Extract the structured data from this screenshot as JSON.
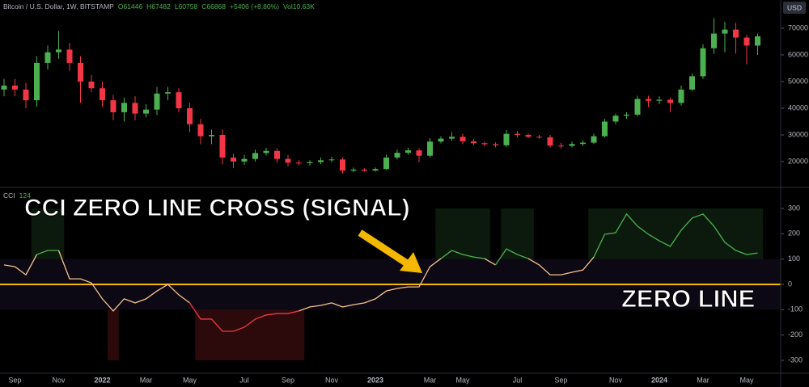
{
  "chart_data": [
    {
      "type": "candlestick",
      "title": "Bitcoin / U.S. Dollar, 1W, BITSTAMP",
      "stats": [
        "O61446",
        "H67482",
        "L60758",
        "C66868",
        "+5406 (+8.80%)",
        "Vol10.63K"
      ],
      "currency": "USD",
      "categories": [
        null,
        "Sep",
        null,
        null,
        null,
        "Nov",
        null,
        null,
        null,
        "2022",
        null,
        null,
        null,
        "Mar",
        null,
        null,
        null,
        "May",
        null,
        null,
        null,
        null,
        "Jul",
        null,
        null,
        null,
        "Sep",
        null,
        null,
        null,
        "Nov",
        null,
        null,
        null,
        "2023",
        null,
        null,
        null,
        null,
        "Mar",
        null,
        null,
        "May",
        null,
        null,
        null,
        null,
        "Jul",
        null,
        null,
        null,
        "Sep",
        null,
        null,
        null,
        null,
        "Nov",
        null,
        null,
        null,
        "2024",
        null,
        null,
        null,
        "Mar",
        null,
        null,
        null,
        "May",
        null
      ],
      "open": [
        47000,
        48500,
        47000,
        43000,
        57000,
        61000,
        62000,
        57000,
        50000,
        47500,
        43000,
        38500,
        42000,
        38000,
        39500,
        45500,
        46000,
        40000,
        34000,
        29500,
        30000,
        21500,
        20000,
        21000,
        23200,
        24000,
        21000,
        19600,
        19400,
        19800,
        20500,
        20800,
        16600,
        17000,
        16600,
        17200,
        21500,
        23300,
        24200,
        22200,
        27500,
        28600,
        29300,
        27600,
        26900,
        26500,
        26100,
        30400,
        30000,
        29300,
        29100,
        26000,
        25900,
        26600,
        27100,
        29500,
        35000,
        37200,
        37600,
        43500,
        42800,
        43200,
        42000,
        47000,
        52000,
        62500,
        68000,
        69500,
        66500,
        63500
      ],
      "high": [
        51000,
        51000,
        49500,
        59500,
        63500,
        69000,
        64500,
        59500,
        52500,
        50000,
        45000,
        44000,
        44500,
        41500,
        48000,
        48000,
        47500,
        42000,
        36000,
        32000,
        32000,
        23000,
        22500,
        24500,
        25200,
        25000,
        22500,
        20500,
        20500,
        21500,
        21800,
        21500,
        17800,
        17500,
        17800,
        22600,
        24500,
        25200,
        25000,
        28800,
        29500,
        31000,
        30500,
        28500,
        27500,
        27200,
        31800,
        31500,
        30500,
        30000,
        30000,
        27000,
        27500,
        28000,
        30500,
        36000,
        38000,
        38500,
        44700,
        44700,
        44500,
        44000,
        48500,
        53000,
        64000,
        73800,
        72500,
        72000,
        67500,
        68000
      ],
      "low": [
        44500,
        44500,
        40000,
        40500,
        54500,
        58500,
        54000,
        42000,
        46000,
        40500,
        35500,
        35000,
        35500,
        36500,
        37500,
        43000,
        38500,
        31000,
        26500,
        26500,
        19000,
        17600,
        18800,
        20000,
        22300,
        19600,
        18200,
        18500,
        18400,
        19000,
        19800,
        15500,
        16000,
        16200,
        16300,
        16900,
        20800,
        22500,
        19700,
        21500,
        26800,
        27800,
        26500,
        26200,
        25800,
        25300,
        25500,
        29000,
        28700,
        28600,
        25200,
        25000,
        25300,
        25900,
        26600,
        29000,
        34000,
        36000,
        37000,
        40500,
        41500,
        38500,
        41000,
        46500,
        51000,
        60500,
        61000,
        60500,
        56500,
        60000
      ],
      "close": [
        48500,
        47000,
        43000,
        57000,
        61000,
        62000,
        57000,
        50000,
        47500,
        43000,
        38500,
        42000,
        38000,
        39500,
        45500,
        46000,
        40000,
        34000,
        29500,
        30000,
        21500,
        20000,
        21000,
        23200,
        24000,
        21000,
        19600,
        19400,
        19800,
        20500,
        20800,
        16600,
        17000,
        16600,
        17200,
        21500,
        23300,
        24200,
        22200,
        27500,
        28600,
        29300,
        27600,
        26900,
        26500,
        26100,
        30400,
        30000,
        29300,
        29100,
        26000,
        25900,
        26600,
        27100,
        29500,
        35000,
        37200,
        37600,
        43500,
        42800,
        43200,
        42000,
        47000,
        52000,
        62500,
        68000,
        69500,
        66500,
        63500,
        67000
      ],
      "ylim": [
        10300,
        80600
      ],
      "yticks": [
        70000,
        60000,
        50000,
        40000,
        30000,
        20000
      ],
      "up_color": "#4caf50",
      "down_color": "#f23645"
    },
    {
      "type": "line",
      "name": "CCI",
      "values": [
        77,
        70,
        38,
        118,
        134,
        134,
        22,
        22,
        6,
        -57,
        -105,
        -57,
        -73,
        -57,
        -26,
        0,
        -41,
        -73,
        -137,
        -137,
        -185,
        -185,
        -169,
        -137,
        -121,
        -115,
        -115,
        -105,
        -89,
        -83,
        -73,
        -89,
        -80,
        -73,
        -57,
        -26,
        -16,
        -10,
        -10,
        70,
        102,
        134,
        118,
        108,
        102,
        77,
        140,
        118,
        102,
        77,
        38,
        38,
        48,
        57,
        108,
        198,
        204,
        278,
        230,
        198,
        172,
        150,
        214,
        262,
        278,
        230,
        166,
        134,
        118,
        124
      ],
      "ylim": [
        -351,
        383
      ],
      "yticks": [
        300,
        200,
        100,
        0,
        -100,
        -200,
        -300
      ],
      "levels": {
        "upper": 100,
        "lower": -100
      },
      "colors": {
        "above": "#4caf50",
        "neutral": "#f5c28e",
        "below": "#f23645"
      },
      "zero_line_color": "#f5b800",
      "annotations": [
        "CCI ZERO LINE CROSS (SIGNAL)",
        "ZERO LINE"
      ]
    }
  ]
}
